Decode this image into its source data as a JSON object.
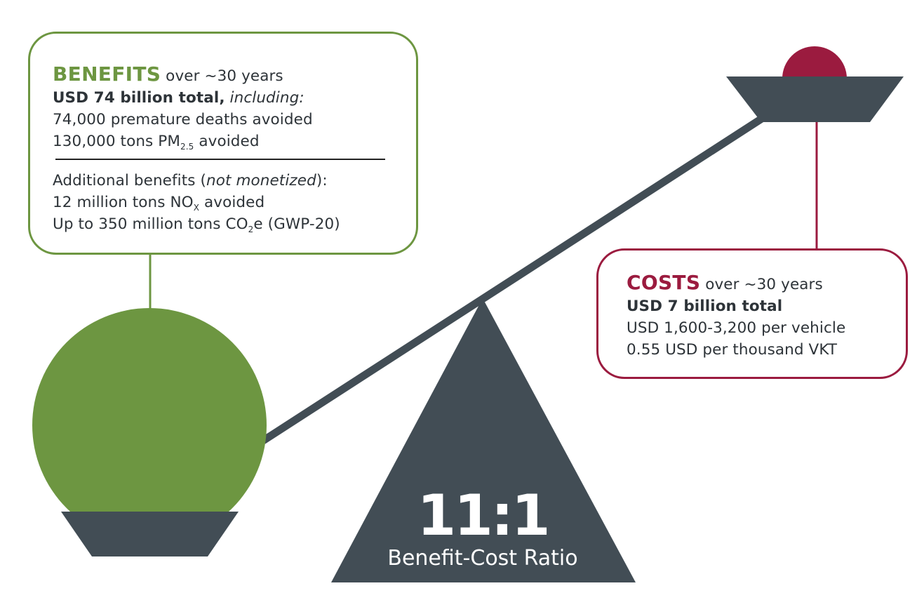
{
  "colors": {
    "green": "#6d9641",
    "crimson": "#9b1b3f",
    "slate": "#424d55"
  },
  "benefits": {
    "heading": "BENEFITS",
    "period": " over ~30 years",
    "total_bold": "USD 74 billion total,",
    "total_italic": "including:",
    "deaths": "74,000 premature deaths avoided",
    "pm_prefix": "130,000 tons PM",
    "pm_sub": "2.5",
    "pm_suffix": " avoided",
    "additional_prefix": "Additional benefits (",
    "additional_italic": "not monetized",
    "additional_suffix": "):",
    "nox_prefix": "12 million tons NO",
    "nox_sub": "X",
    "nox_suffix": " avoided",
    "co2_prefix": "Up to 350 million tons CO",
    "co2_sub": "2",
    "co2_suffix": "e (GWP-20)"
  },
  "costs": {
    "heading": "COSTS",
    "period": " over ~30 years",
    "total": "USD 7 billion total",
    "per_vehicle": "USD 1,600-3,200 per vehicle",
    "per_vkt": "0.55 USD per thousand VKT"
  },
  "ratio": {
    "value": "11:1",
    "label": "Benefit-Cost Ratio"
  }
}
